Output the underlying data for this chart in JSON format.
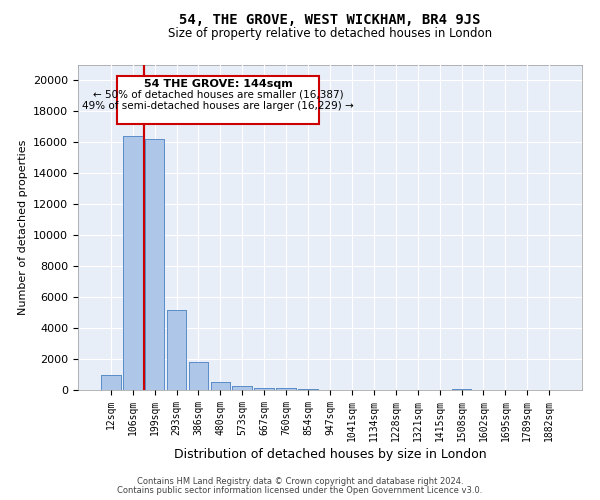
{
  "title": "54, THE GROVE, WEST WICKHAM, BR4 9JS",
  "subtitle": "Size of property relative to detached houses in London",
  "xlabel": "Distribution of detached houses by size in London",
  "ylabel": "Number of detached properties",
  "bar_color": "#aec6e8",
  "bar_edge_color": "#5b8fc9",
  "background_color": "#e8eef8",
  "annotation_box_color": "#ffffff",
  "annotation_border_color": "#cc0000",
  "vline_color": "#cc0000",
  "footer_line1": "Contains HM Land Registry data © Crown copyright and database right 2024.",
  "footer_line2": "Contains public sector information licensed under the Open Government Licence v3.0.",
  "annotation_title": "54 THE GROVE: 144sqm",
  "annotation_line1": "← 50% of detached houses are smaller (16,387)",
  "annotation_line2": "49% of semi-detached houses are larger (16,229) →",
  "categories": [
    "12sqm",
    "106sqm",
    "199sqm",
    "293sqm",
    "386sqm",
    "480sqm",
    "573sqm",
    "667sqm",
    "760sqm",
    "854sqm",
    "947sqm",
    "1041sqm",
    "1134sqm",
    "1228sqm",
    "1321sqm",
    "1415sqm",
    "1508sqm",
    "1602sqm",
    "1695sqm",
    "1789sqm",
    "1882sqm"
  ],
  "values": [
    1000,
    16400,
    16200,
    5200,
    1800,
    500,
    250,
    150,
    100,
    50,
    20,
    10,
    5,
    5,
    5,
    5,
    60,
    5,
    5,
    5,
    5
  ],
  "vline_pos": 1.5,
  "ylim": [
    0,
    21000
  ],
  "yticks": [
    0,
    2000,
    4000,
    6000,
    8000,
    10000,
    12000,
    14000,
    16000,
    18000,
    20000
  ],
  "figsize": [
    6.0,
    5.0
  ],
  "dpi": 100
}
